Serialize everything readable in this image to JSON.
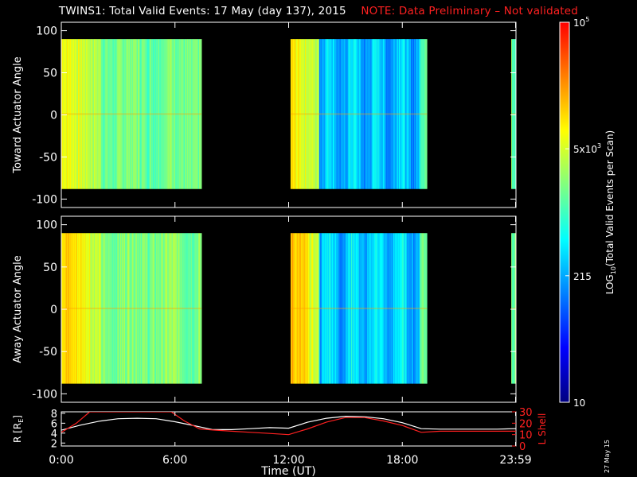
{
  "title": {
    "main": "TWINS1: Total Valid Events: 17 May (day 137), 2015",
    "note": "NOTE: Data Preliminary – Not validated",
    "note_color": "#ff2020"
  },
  "date_stamp": "27 May 15",
  "chart_data": [
    {
      "type": "heatmap",
      "panel": "toward",
      "ylabel": "Toward Actuator Angle",
      "xlim": [
        0,
        24
      ],
      "ylim": [
        -110,
        110
      ],
      "y_ticks": [
        100,
        50,
        0,
        -50,
        -100
      ],
      "y_data_range": [
        -88,
        90
      ],
      "data_intervals_hours": [
        [
          0.0,
          7.4
        ],
        [
          12.1,
          19.3
        ],
        [
          23.75,
          23.98
        ]
      ],
      "grid": false
    },
    {
      "type": "heatmap",
      "panel": "away",
      "ylabel": "Away Actuator Angle",
      "xlim": [
        0,
        24
      ],
      "ylim": [
        -110,
        110
      ],
      "y_ticks": [
        100,
        50,
        0,
        -50,
        -100
      ],
      "y_data_range": [
        -88,
        90
      ],
      "data_intervals_hours": [
        [
          0.0,
          7.4
        ],
        [
          12.1,
          19.3
        ],
        [
          23.75,
          23.98
        ]
      ],
      "grid": false
    },
    {
      "type": "line",
      "panel": "orbit",
      "xlabel": "Time (UT)",
      "x_ticks": [
        "0:00",
        "6:00",
        "12:00",
        "18:00",
        "23:59"
      ],
      "x_tick_hours": [
        0,
        6,
        12,
        18,
        23.98
      ],
      "xlim": [
        0,
        24
      ],
      "y_left": {
        "label": "R [R",
        "label_sub": "E",
        "label_end": "]",
        "ticks": [
          "8",
          "6",
          "4",
          "2"
        ],
        "ylim": [
          1.4,
          8.3
        ],
        "color": "#ffffff"
      },
      "y_right": {
        "label": "L Shell",
        "ticks": [
          "30",
          "20",
          "10",
          "0"
        ],
        "ylim": [
          0,
          30
        ],
        "color": "#ff2020"
      },
      "series": [
        {
          "axis": "left",
          "color": "#ffffff",
          "x": [
            0,
            1,
            2,
            3,
            4,
            5,
            6,
            7,
            8,
            9,
            10,
            11,
            12,
            13,
            14,
            15,
            16,
            17,
            18,
            19,
            20,
            21,
            22,
            23,
            24
          ],
          "y": [
            4.6,
            5.6,
            6.4,
            6.9,
            7.0,
            6.9,
            6.3,
            5.5,
            4.7,
            4.7,
            4.9,
            5.1,
            5.0,
            6.2,
            7.0,
            7.4,
            7.3,
            6.9,
            6.1,
            4.9,
            4.8,
            4.8,
            4.8,
            4.8,
            4.9
          ]
        },
        {
          "axis": "right",
          "color": "#ff2020",
          "x": [
            0,
            0.8,
            1.5,
            1.8,
            5.8,
            6.5,
            7.3,
            8,
            9,
            10,
            11,
            12,
            13,
            14,
            15,
            16,
            17,
            18,
            19,
            20,
            24
          ],
          "y": [
            12,
            20,
            30,
            30,
            30,
            22,
            15,
            14,
            13,
            12,
            11,
            10,
            15,
            21,
            25,
            25,
            22,
            18,
            12,
            13,
            13
          ]
        }
      ]
    },
    {
      "type": "colorbar",
      "label": "LOG",
      "label_sub": "10",
      "label_rest": "(Total Valid Events per Scan)",
      "ticks": [
        {
          "label": "10",
          "frac": 0.0
        },
        {
          "label": "215",
          "frac": 0.333
        },
        {
          "label": "5x10",
          "sup": "3",
          "frac": 0.667
        },
        {
          "label": "10",
          "sup": "5",
          "frac": 1.0
        }
      ],
      "colors": [
        "#000080",
        "#0000ff",
        "#0080ff",
        "#00ffff",
        "#80ff80",
        "#ffff00",
        "#ff8000",
        "#ff0000"
      ]
    }
  ]
}
